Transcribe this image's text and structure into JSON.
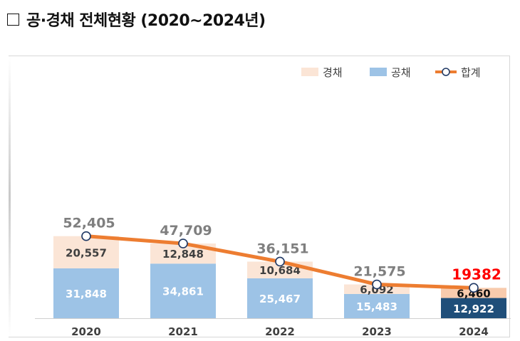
{
  "header": {
    "title": "공·경채 전체현황 (2020~2024년)"
  },
  "chart_data": {
    "type": "bar",
    "stacked": true,
    "categories": [
      "2020",
      "2021",
      "2022",
      "2023",
      "2024"
    ],
    "series": [
      {
        "name": "공채",
        "values": [
          31848,
          34861,
          25467,
          15483,
          12922
        ],
        "color": "#9dc3e6",
        "highlight_color": "#1f4e79"
      },
      {
        "name": "경채",
        "values": [
          20557,
          12848,
          10684,
          6092,
          6460
        ],
        "color": "#fbe5d6",
        "highlight_color": "#f8cbad"
      }
    ],
    "value_labels": {
      "공채": [
        "31,848",
        "34,861",
        "25,467",
        "15,483",
        "12,922"
      ],
      "경채": [
        "20,557",
        "12,848",
        "10,684",
        "6,092",
        "6,460"
      ]
    },
    "total": {
      "name": "합계",
      "values": [
        52405,
        47709,
        36151,
        21575,
        19382
      ],
      "labels": [
        "52,405",
        "47,709",
        "36,151",
        "21,575",
        "19382"
      ],
      "line_color": "#ed7d31",
      "label_color": "#7f7f7f",
      "highlight_label_color": "#ff0000"
    },
    "highlight_category": "2024",
    "legend": {
      "position": "top-right",
      "items": [
        {
          "name": "경채",
          "type": "box",
          "color": "#fbe5d6"
        },
        {
          "name": "공채",
          "type": "box",
          "color": "#9dc3e6"
        },
        {
          "name": "합계",
          "type": "line-marker",
          "color": "#ed7d31"
        }
      ]
    },
    "ylim": [
      0,
      60000
    ],
    "grid": false,
    "xlabel": "",
    "ylabel": ""
  }
}
